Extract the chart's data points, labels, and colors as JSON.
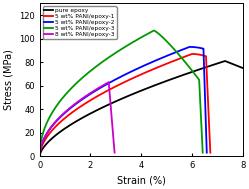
{
  "title": "",
  "xlabel": "Strain (%)",
  "ylabel": "Stress (MPa)",
  "xlim": [
    0,
    8
  ],
  "ylim": [
    0,
    130
  ],
  "xticks": [
    0,
    2,
    4,
    6,
    8
  ],
  "yticks": [
    0,
    20,
    40,
    60,
    80,
    100,
    120
  ],
  "legend_entries": [
    "pure epoxy",
    "5 wt% PANI/epoxy-1",
    "5 wt% PANI/epoxy-2",
    "5 wt% PANI/epoxy-3",
    "8 wt% PANI/epoxy-3"
  ],
  "colors": [
    "#000000",
    "#ff0000",
    "#0000ff",
    "#009900",
    "#cc00cc"
  ],
  "background_color": "#ffffff"
}
